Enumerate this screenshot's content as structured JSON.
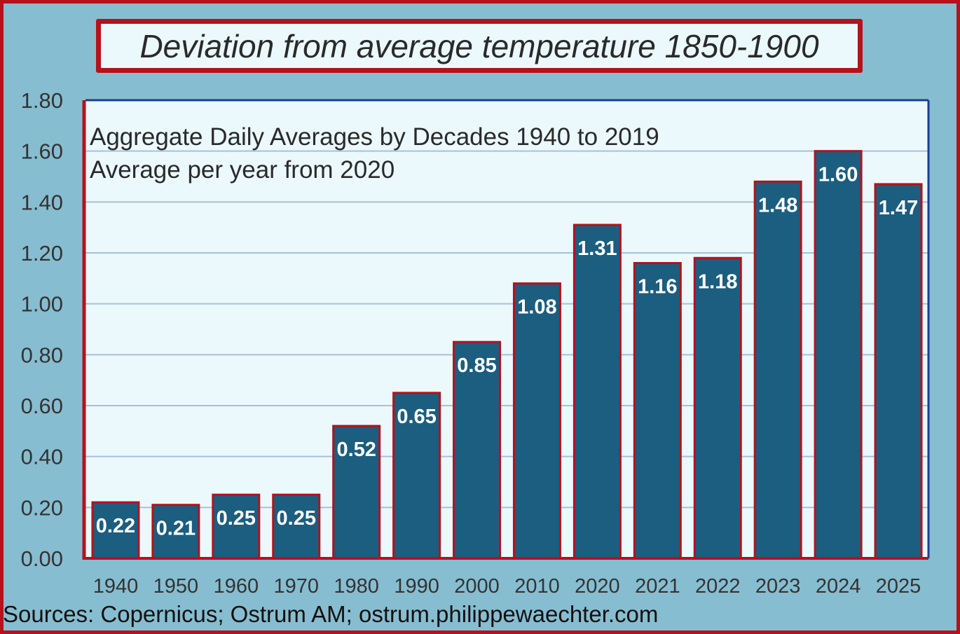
{
  "chart_data": {
    "type": "bar",
    "title": "Deviation from average temperature 1850-1900",
    "subtitle_lines": [
      "Aggregate Daily Averages by Decades 1940 to 2019",
      "Average per year from 2020"
    ],
    "categories": [
      "1940",
      "1950",
      "1960",
      "1970",
      "1980",
      "1990",
      "2000",
      "2010",
      "2020",
      "2021",
      "2022",
      "2023",
      "2024",
      "2025"
    ],
    "values": [
      0.22,
      0.21,
      0.25,
      0.25,
      0.52,
      0.65,
      0.85,
      1.08,
      1.31,
      1.16,
      1.18,
      1.48,
      1.6,
      1.47
    ],
    "data_labels": [
      "0.22",
      "0.21",
      "0.25",
      "0.25",
      "0.52",
      "0.65",
      "0.85",
      "1.08",
      "1.31",
      "1.16",
      "1.18",
      "1.48",
      "1.60",
      "1.47"
    ],
    "y_ticks": [
      "0.00",
      "0.20",
      "0.40",
      "0.60",
      "0.80",
      "1.00",
      "1.20",
      "1.40",
      "1.60",
      "1.80"
    ],
    "ylim": [
      0,
      1.8
    ],
    "grid": true,
    "xlabel": "",
    "ylabel": "",
    "source": "Sources: Copernicus; Ostrum AM; ostrum.philippewaechter.com",
    "colors": {
      "bar": "#1b5e80",
      "bar_outline": "#b5121b",
      "plot_bg": "#ebf9fd",
      "grid": "#a9bfdc",
      "frame_bg": "#87bdd0"
    }
  }
}
